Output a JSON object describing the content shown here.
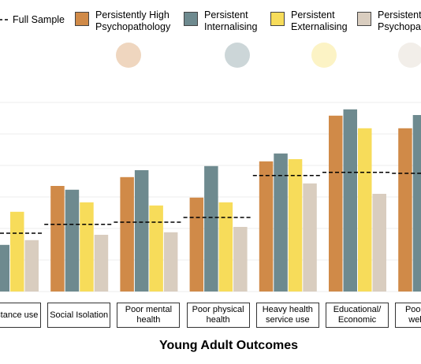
{
  "chart_data": {
    "type": "bar",
    "x_label": "Young Adult Outcomes",
    "categories": [
      "Substance use",
      "Social Isolation",
      "Poor mental health",
      "Poor physical health",
      "Heavy health service use",
      "Educational/ Economic",
      "Poor social wellbeing"
    ],
    "series": [
      {
        "name": "Full Sample",
        "color": "#000000",
        "mark": "dashed-line",
        "values": [
          1.85,
          2.13,
          2.2,
          2.35,
          3.68,
          3.78,
          3.75
        ]
      },
      {
        "name": "Persistently High Psychopathology",
        "color": "#d08a48",
        "values": [
          null,
          3.35,
          3.63,
          2.98,
          4.13,
          5.58,
          5.18
        ]
      },
      {
        "name": "Persistent Internalising",
        "color": "#6e8a8f",
        "values": [
          1.48,
          3.23,
          3.85,
          3.98,
          4.38,
          5.78,
          5.6
        ]
      },
      {
        "name": "Persistent Externalising",
        "color": "#f7dc5a",
        "values": [
          2.53,
          2.83,
          2.73,
          2.83,
          4.2,
          5.18,
          null
        ]
      },
      {
        "name": "Persistent Low Psychopathology",
        "color": "#d9cdbf",
        "values": [
          1.63,
          1.8,
          1.88,
          2.05,
          3.43,
          3.1,
          null
        ]
      }
    ],
    "ylim": [
      0,
      6
    ],
    "yticks": [
      0,
      1,
      2,
      3,
      4,
      5,
      6
    ],
    "grid": true
  }
}
